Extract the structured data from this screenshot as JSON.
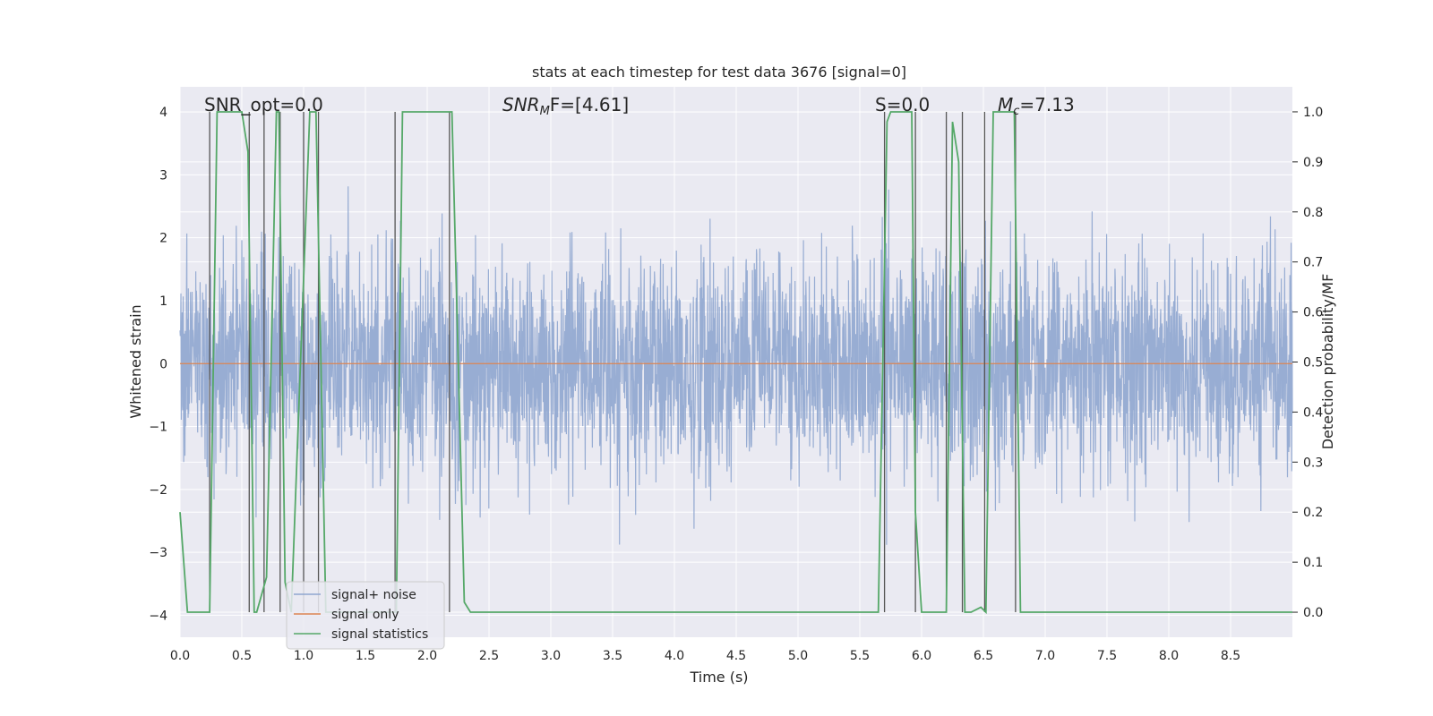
{
  "chart_data": {
    "type": "line",
    "title": "stats at each timestep for test data 3676 [signal=0]",
    "xlabel": "Time (s)",
    "ylabel_left": "Whitened strain",
    "ylabel_right": "Detection probability/MF",
    "xlim": [
      0,
      9.0
    ],
    "ylim_left": [
      -4.35,
      4.4
    ],
    "ylim_right": [
      -0.05,
      1.05
    ],
    "x_ticks": [
      "0.0",
      "0.5",
      "1.0",
      "1.5",
      "2.0",
      "2.5",
      "3.0",
      "3.5",
      "4.0",
      "4.5",
      "5.0",
      "5.5",
      "6.0",
      "6.5",
      "7.0",
      "7.5",
      "8.0",
      "8.5"
    ],
    "y_left_ticks": [
      "4",
      "3",
      "2",
      "1",
      "0",
      "−1",
      "−2",
      "−3",
      "−4"
    ],
    "y_right_ticks": [
      "1.0",
      "0.9",
      "0.8",
      "0.7",
      "0.6",
      "0.5",
      "0.4",
      "0.3",
      "0.2",
      "0.1",
      "0.0"
    ],
    "grid": true,
    "annotations": {
      "snr_opt": "SNR_opt=0.0",
      "snr_mf_base": "SNR",
      "snr_mf_sub": "M",
      "snr_mf_rest": "F=[4.61]",
      "s": "S=0.0",
      "mc_base": "M",
      "mc_sub": "c",
      "mc_rest": "=7.13"
    },
    "legend": {
      "placement": "lower-left",
      "entries": [
        "signal+ noise",
        "signal only",
        "signal statistics"
      ]
    },
    "colors": {
      "noise": "#8fa6cf",
      "signal": "#dd8452",
      "stats": "#55a868",
      "vlines": "#555555",
      "background": "#eaeaf2",
      "grid": "#ffffff"
    },
    "series": [
      {
        "name": "signal+ noise",
        "axis": "left",
        "description_range": "noise fluctuating roughly between -3.9 and 3.9, amplitude approx ±2.4",
        "seed": 3676,
        "n_points": 3600
      },
      {
        "name": "signal only",
        "axis": "left",
        "x": [
          0,
          9.0
        ],
        "y": [
          0,
          0
        ]
      },
      {
        "name": "signal statistics",
        "axis": "right",
        "x": [
          0.0,
          0.06,
          0.24,
          0.3,
          0.5,
          0.55,
          0.6,
          0.62,
          0.7,
          0.78,
          0.8,
          0.85,
          0.9,
          1.05,
          1.1,
          1.18,
          1.25,
          1.5,
          1.75,
          1.8,
          2.2,
          2.3,
          2.35,
          5.6,
          5.65,
          5.72,
          5.75,
          5.92,
          5.95,
          6.0,
          6.08,
          6.18,
          6.2,
          6.25,
          6.3,
          6.35,
          6.4,
          6.48,
          6.52,
          6.58,
          6.75,
          6.8,
          6.85,
          7.0,
          7.1,
          9.0
        ],
        "y": [
          0.2,
          0.0,
          0.0,
          1.0,
          1.0,
          0.92,
          0.0,
          0.0,
          0.07,
          1.0,
          1.0,
          0.06,
          0.0,
          1.0,
          1.0,
          0.0,
          0.0,
          0.0,
          0.0,
          1.0,
          1.0,
          0.02,
          0.0,
          0.0,
          0.0,
          0.98,
          1.0,
          1.0,
          0.2,
          0.0,
          0.0,
          0.0,
          0.0,
          0.98,
          0.9,
          0.0,
          0.0,
          0.01,
          0.0,
          1.0,
          1.0,
          0.0,
          0.0,
          0.0,
          0.0,
          0.0
        ]
      }
    ],
    "vertical_lines_x": [
      0.24,
      0.56,
      0.68,
      0.81,
      1.0,
      1.12,
      1.74,
      2.18,
      5.7,
      5.95,
      6.2,
      6.33,
      6.51,
      6.76
    ]
  }
}
